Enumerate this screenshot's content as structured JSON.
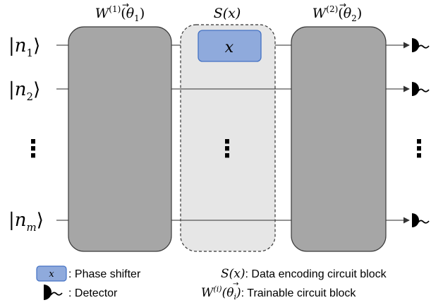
{
  "blocks": {
    "w1": {
      "name": "W",
      "superscript": "(1)",
      "paren_open": "(",
      "theta": "θ",
      "subscript": "1",
      "paren_close": ")",
      "fill": "#a6a6a6"
    },
    "s": {
      "name": "S",
      "arg": "(x)",
      "fill": "#e6e6e6"
    },
    "w2": {
      "name": "W",
      "superscript": "(2)",
      "paren_open": "(",
      "theta": "θ",
      "subscript": "2",
      "paren_close": ")",
      "fill": "#a6a6a6"
    }
  },
  "inputs": [
    {
      "label": "n",
      "subscript": "1"
    },
    {
      "label": "n",
      "subscript": "2"
    },
    {
      "label": "n",
      "subscript": "m"
    }
  ],
  "phase_shifter": {
    "label": "x",
    "fill": "#8faadc",
    "stroke": "#4472c4"
  },
  "ellipsis": "⋮",
  "legend": {
    "phase_shifter_symbol": "x",
    "phase_shifter_text": ": Phase shifter",
    "detector_text": ": Detector",
    "s_name": "S",
    "s_arg": "(x)",
    "s_text": ": Data encoding circuit block",
    "w_name": "W",
    "w_superscript": "(i)",
    "w_paren_open": "(",
    "w_theta": "θ",
    "w_subscript": "i",
    "w_paren_close": ")",
    "w_text": ": Trainable circuit block"
  }
}
